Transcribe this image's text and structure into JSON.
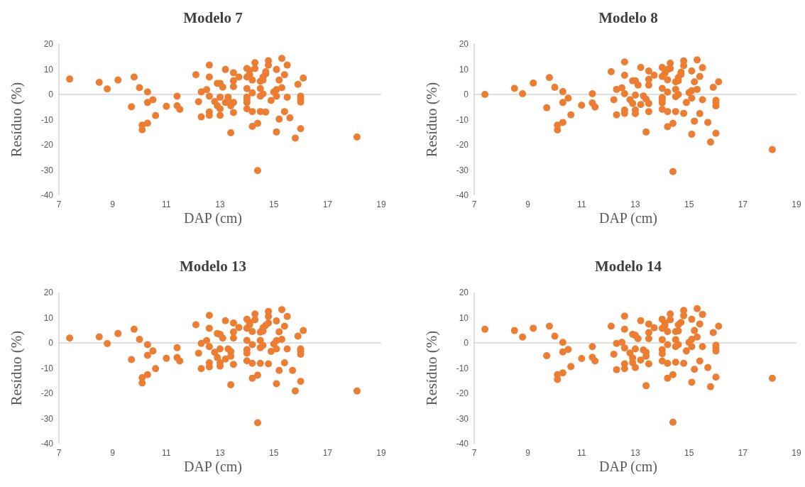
{
  "chart_data": [
    {
      "type": "scatter",
      "title": "Modelo 7",
      "xlabel": "DAP (cm)",
      "ylabel": "Resíduo (%)",
      "color": "#ed7d31",
      "marker": "circle",
      "xlim": [
        7,
        19
      ],
      "ylim": [
        -40,
        20
      ],
      "xticks": [
        7,
        9,
        11,
        13,
        15,
        17,
        19
      ],
      "yticks": [
        -40,
        -30,
        -20,
        -10,
        0,
        10,
        20
      ],
      "x": [
        7.4,
        8.5,
        8.8,
        9.2,
        9.8,
        10.0,
        10.3,
        9.7,
        10.3,
        10.5,
        10.6,
        10.1,
        10.3,
        10.1,
        11.0,
        11.4,
        11.4,
        11.5,
        12.1,
        12.2,
        12.3,
        12.3,
        12.5,
        12.6,
        12.6,
        12.6,
        12.6,
        12.6,
        12.8,
        12.9,
        13.0,
        13.1,
        13.0,
        12.9,
        13.0,
        13.0,
        13.2,
        13.3,
        13.3,
        13.2,
        13.5,
        13.4,
        13.5,
        13.5,
        13.5,
        13.7,
        13.5,
        13.4,
        14.0,
        14.1,
        14.0,
        14.1,
        14.2,
        14.0,
        14.2,
        14.0,
        14.0,
        14.0,
        14.0,
        14.2,
        14.2,
        14.3,
        14.3,
        14.4,
        14.5,
        14.5,
        14.5,
        14.6,
        14.6,
        14.7,
        14.7,
        14.6,
        14.5,
        14.4,
        14.8,
        14.8,
        14.7,
        14.9,
        15.1,
        15.2,
        15.0,
        15.1,
        15.1,
        15.3,
        15.2,
        15.1,
        15.3,
        15.5,
        15.4,
        15.5,
        15.4,
        15.6,
        15.9,
        16.1,
        16.0,
        16.0,
        16.0,
        16.0,
        15.8,
        18.1
      ],
      "values": [
        6.1,
        4.8,
        2.2,
        5.7,
        6.9,
        2.7,
        1.0,
        -4.9,
        -3.2,
        -2.1,
        -8.4,
        -12.2,
        -11.4,
        -14.0,
        -4.7,
        -0.7,
        -4.5,
        -5.9,
        7.8,
        -2.9,
        1.0,
        -8.9,
        1.9,
        11.6,
        6.9,
        -0.7,
        -7.0,
        -8.3,
        -2.8,
        4.4,
        4.4,
        2.9,
        -1.1,
        -4.5,
        -5.7,
        -8.3,
        9.9,
        -1.1,
        -2.4,
        -3.2,
        -3.2,
        -4.5,
        8.6,
        5.4,
        3.1,
        6.9,
        -7.2,
        -15.2,
        10.3,
        9.5,
        6.9,
        7.8,
        5.7,
        2.3,
        0.6,
        -1.1,
        -1.9,
        -3.2,
        -5.7,
        -6.8,
        -12.7,
        12.6,
        10.3,
        -11.5,
        5.2,
        2.3,
        -0.7,
        0.2,
        6.9,
        8.2,
        9.0,
        5.7,
        -6.8,
        -30.2,
        13.4,
        11.6,
        -7.0,
        -2.4,
        9.9,
        5.7,
        1.0,
        1.9,
        -0.7,
        2.7,
        -9.8,
        -14.9,
        14.3,
        11.6,
        7.8,
        -1.1,
        -6.8,
        -9.3,
        4.0,
        6.5,
        -0.7,
        -1.9,
        -3.0,
        -13.6,
        -17.3,
        -16.9
      ]
    },
    {
      "type": "scatter",
      "title": "Modelo 8",
      "xlabel": "DAP (cm)",
      "ylabel": "Resíduo (%)",
      "color": "#ed7d31",
      "marker": "circle",
      "xlim": [
        7,
        19
      ],
      "ylim": [
        -40,
        20
      ],
      "xticks": [
        7,
        9,
        11,
        13,
        15,
        17,
        19
      ],
      "yticks": [
        -40,
        -30,
        -20,
        -10,
        0,
        10,
        20
      ],
      "x": [
        7.4,
        8.5,
        8.8,
        9.2,
        9.8,
        10.0,
        10.3,
        9.7,
        10.3,
        10.5,
        10.6,
        10.1,
        10.3,
        10.1,
        11.0,
        11.4,
        11.4,
        11.5,
        12.1,
        12.2,
        12.3,
        12.3,
        12.5,
        12.6,
        12.6,
        12.6,
        12.6,
        12.6,
        12.8,
        12.9,
        13.0,
        13.1,
        13.0,
        12.9,
        13.0,
        13.0,
        13.2,
        13.3,
        13.4,
        13.2,
        13.5,
        13.5,
        13.5,
        13.5,
        13.7,
        13.5,
        13.4,
        14.0,
        14.2,
        14.0,
        14.1,
        14.2,
        14.0,
        14.2,
        14.0,
        14.0,
        14.0,
        14.0,
        14.2,
        14.2,
        14.3,
        14.3,
        14.4,
        14.5,
        14.5,
        14.5,
        14.6,
        14.6,
        14.7,
        14.7,
        14.6,
        14.5,
        14.4,
        14.8,
        14.8,
        14.8,
        14.9,
        15.1,
        15.2,
        15.0,
        15.1,
        15.1,
        15.3,
        15.2,
        15.1,
        15.3,
        15.5,
        15.4,
        15.5,
        15.4,
        15.7,
        15.9,
        16.1,
        16.0,
        16.0,
        16.0,
        16.0,
        15.8,
        18.1
      ],
      "values": [
        0,
        2.4,
        0.3,
        4.5,
        6.7,
        2.8,
        1.1,
        -5.3,
        -3.2,
        -1.5,
        -8.1,
        -12.2,
        -11.1,
        -14.1,
        -4.3,
        0.3,
        -3.4,
        -5.0,
        9.0,
        -2.1,
        2.0,
        -8.1,
        2.6,
        12.9,
        7.6,
        0.3,
        -6.2,
        -7.5,
        -2.1,
        5.4,
        5.4,
        3.7,
        -0.3,
        -3.6,
        -6.2,
        -7.6,
        10.7,
        -0.6,
        -1.9,
        -4.0,
        -3.6,
        9.3,
        6.0,
        3.7,
        7.6,
        -6.8,
        -14.9,
        10.7,
        9.9,
        7.1,
        8.4,
        5.8,
        2.4,
        0.9,
        -1.2,
        -2.1,
        -3.3,
        -5.9,
        -6.8,
        -12.8,
        12.4,
        10.3,
        -11.5,
        5.0,
        2.0,
        -0.9,
        0,
        6.7,
        8.0,
        8.8,
        5.4,
        -6.8,
        -30.6,
        13.3,
        11.4,
        -7.5,
        -3.2,
        9.3,
        5.0,
        0.7,
        1.5,
        -1.5,
        2.0,
        -10.6,
        -15.8,
        13.7,
        10.6,
        7.1,
        -2.1,
        -7.6,
        -11.1,
        2.8,
        5.0,
        -2.3,
        -3.4,
        -4.6,
        -15.4,
        -18.9,
        -21.9
      ]
    },
    {
      "type": "scatter",
      "title": "Modelo 13",
      "xlabel": "DAP (cm)",
      "ylabel": "Resíduo (%)",
      "color": "#ed7d31",
      "marker": "circle",
      "xlim": [
        7,
        19
      ],
      "ylim": [
        -40,
        20
      ],
      "xticks": [
        7,
        9,
        11,
        13,
        15,
        17,
        19
      ],
      "yticks": [
        -40,
        -30,
        -20,
        -10,
        0,
        10,
        20
      ],
      "x": [
        7.4,
        8.5,
        8.8,
        9.2,
        9.8,
        10.0,
        10.3,
        9.7,
        10.3,
        10.5,
        10.6,
        10.1,
        10.3,
        10.1,
        11.0,
        11.4,
        11.4,
        11.5,
        12.1,
        12.2,
        12.3,
        12.3,
        12.5,
        12.6,
        12.6,
        12.6,
        12.6,
        12.6,
        12.8,
        12.9,
        13.0,
        13.1,
        13.0,
        12.9,
        13.0,
        13.0,
        13.2,
        13.3,
        13.4,
        13.2,
        13.4,
        13.5,
        13.5,
        13.5,
        13.7,
        13.5,
        13.4,
        14.0,
        14.1,
        14.0,
        14.1,
        14.2,
        14.0,
        14.2,
        14.0,
        14.0,
        14.0,
        14.2,
        14.2,
        14.3,
        14.3,
        14.4,
        14.5,
        14.5,
        14.5,
        14.6,
        14.6,
        14.7,
        14.8,
        14.6,
        14.5,
        14.4,
        14.8,
        14.8,
        14.8,
        14.9,
        15.1,
        15.2,
        15.0,
        15.1,
        15.1,
        15.3,
        15.2,
        15.1,
        15.3,
        15.5,
        15.4,
        15.5,
        15.4,
        15.7,
        15.9,
        16.1,
        16.0,
        16.0,
        16.0,
        16.0,
        15.8,
        18.1
      ],
      "values": [
        1.9,
        2.4,
        -0.3,
        3.7,
        5.4,
        1.4,
        -0.7,
        -6.6,
        -4.9,
        -3.2,
        -10.2,
        -13.8,
        -12.6,
        -15.9,
        -6.1,
        -1.9,
        -5.8,
        -7.2,
        7.2,
        -4.1,
        -0.2,
        -10.2,
        0.9,
        10.9,
        5.8,
        -1.5,
        -7.9,
        -9.5,
        -3.7,
        3.7,
        3.4,
        1.9,
        -2.4,
        -5.8,
        -7.9,
        -9.2,
        8.8,
        -2.4,
        -3.4,
        -6.4,
        -5.3,
        7.9,
        4.3,
        1.9,
        6.1,
        -8.5,
        -16.6,
        9.4,
        8.1,
        5.8,
        7.2,
        4.5,
        1.0,
        -0.7,
        -2.7,
        -4.1,
        -7.1,
        -8.1,
        -14.0,
        11.5,
        9.2,
        -12.8,
        4.3,
        1.0,
        -1.9,
        -1.0,
        6.0,
        7.0,
        7.9,
        4.7,
        -8.1,
        -31.7,
        12.5,
        10.5,
        -8.3,
        -3.4,
        8.7,
        4.4,
        -0.4,
        0.9,
        -2.4,
        1.4,
        -10.9,
        -16.2,
        13.2,
        10.5,
        6.6,
        -2.4,
        -7.9,
        -10.9,
        2.7,
        4.9,
        -2.4,
        -3.4,
        -4.5,
        -15.3,
        -19.1,
        -19.1
      ]
    },
    {
      "type": "scatter",
      "title": "Modelo 14",
      "xlabel": "DAP (cm)",
      "ylabel": "Resíduo (%)",
      "color": "#ed7d31",
      "marker": "circle",
      "xlim": [
        7,
        19
      ],
      "ylim": [
        -40,
        20
      ],
      "xticks": [
        7,
        9,
        11,
        13,
        15,
        17,
        19
      ],
      "yticks": [
        -40,
        -30,
        -20,
        -10,
        0,
        10,
        20
      ],
      "x": [
        7.4,
        8.5,
        8.8,
        9.2,
        9.8,
        10.0,
        10.3,
        9.7,
        10.3,
        10.5,
        10.6,
        10.1,
        10.3,
        10.1,
        11.0,
        11.4,
        11.4,
        11.5,
        12.1,
        12.2,
        12.3,
        12.3,
        12.5,
        12.6,
        12.6,
        12.6,
        12.6,
        12.6,
        12.8,
        12.9,
        13.0,
        13.1,
        13.0,
        12.9,
        13.0,
        12.9,
        13.2,
        13.3,
        13.4,
        13.2,
        13.4,
        13.5,
        13.5,
        13.5,
        13.7,
        13.5,
        13.4,
        14.0,
        14.1,
        14.0,
        14.1,
        14.2,
        14.0,
        14.2,
        14.0,
        14.0,
        14.0,
        14.2,
        14.2,
        14.3,
        14.3,
        14.4,
        14.5,
        14.5,
        14.5,
        14.6,
        14.6,
        14.7,
        14.6,
        14.5,
        14.4,
        14.8,
        14.8,
        14.8,
        14.9,
        15.1,
        15.2,
        15.0,
        15.1,
        15.1,
        15.3,
        15.2,
        15.1,
        15.3,
        15.5,
        15.4,
        15.5,
        15.4,
        15.7,
        15.9,
        16.1,
        16.0,
        16.0,
        16.0,
        16.0,
        15.8,
        18.1
      ],
      "values": [
        5.4,
        4.9,
        2.3,
        5.8,
        6.6,
        2.7,
        0.2,
        -5.1,
        -3.6,
        -2.6,
        -9.4,
        -12.6,
        -11.9,
        -14.5,
        -6.2,
        -1.5,
        -5.7,
        -7.2,
        6.6,
        -4.5,
        -0.2,
        -10.6,
        0.2,
        10.6,
        5.4,
        -2.0,
        -8.3,
        -10.2,
        -4.0,
        3.4,
        3.0,
        1.7,
        -2.4,
        -7.8,
        -9.8,
        -6.0,
        8.8,
        -2.8,
        -3.7,
        -6.8,
        -5.3,
        7.5,
        4.1,
        1.7,
        6.0,
        -8.3,
        -17.0,
        9.4,
        7.8,
        5.8,
        7.0,
        4.5,
        1.3,
        -0.7,
        -2.7,
        -4.3,
        -7.2,
        -8.1,
        -14.0,
        11.5,
        9.2,
        -12.6,
        4.5,
        1.3,
        -1.5,
        -0.7,
        7.2,
        8.1,
        4.7,
        -7.7,
        -31.5,
        12.9,
        10.8,
        -8.1,
        -3.2,
        9.4,
        4.9,
        0.2,
        1.4,
        -1.5,
        2.3,
        -10.5,
        -15.6,
        13.6,
        11.3,
        7.5,
        -1.5,
        -7.2,
        -9.8,
        4.1,
        6.6,
        -0.9,
        -2.0,
        -3.2,
        -13.6,
        -17.4,
        -14.0
      ]
    }
  ]
}
